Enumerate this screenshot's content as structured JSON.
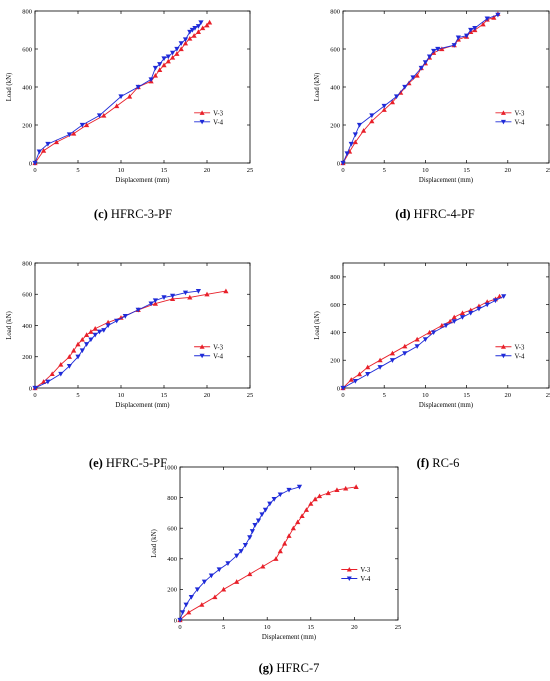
{
  "colors": {
    "v3": "#e8202a",
    "v4": "#1f2bd8",
    "axis": "#000000"
  },
  "chart_data": [
    {
      "type": "line",
      "caption": "(c) HFRC-3-PF",
      "xlabel": "Displacement (mm)",
      "ylabel": "Load (kN)",
      "xlim": [
        0,
        25
      ],
      "ylim": [
        0,
        800
      ],
      "xticks": [
        0,
        5,
        10,
        15,
        20,
        25
      ],
      "yticks": [
        0,
        200,
        400,
        600,
        800
      ],
      "legend": "right",
      "series": [
        {
          "name": "V-3",
          "marker": "triangle-up",
          "x": [
            0,
            1,
            2.5,
            4.5,
            6,
            8,
            9.5,
            11,
            12,
            13.5,
            14,
            14.5,
            15,
            15.5,
            16,
            16.5,
            17,
            17.5,
            18,
            18.5,
            19,
            19.5,
            20,
            20.3
          ],
          "y": [
            0,
            65,
            110,
            155,
            200,
            250,
            300,
            350,
            400,
            430,
            460,
            490,
            515,
            535,
            555,
            575,
            600,
            630,
            655,
            670,
            690,
            710,
            725,
            740
          ]
        },
        {
          "name": "V-4",
          "marker": "triangle-down",
          "x": [
            0,
            0.5,
            1.5,
            4,
            5.5,
            7.5,
            10,
            12,
            13.5,
            14,
            14.5,
            15,
            15.5,
            16,
            16.5,
            17,
            17.5,
            18,
            18.3,
            18.6,
            19,
            19.3
          ],
          "y": [
            0,
            60,
            100,
            150,
            200,
            250,
            350,
            400,
            440,
            500,
            520,
            550,
            560,
            580,
            600,
            630,
            650,
            690,
            700,
            710,
            720,
            740
          ]
        }
      ]
    },
    {
      "type": "line",
      "caption": "(d) HFRC-4-PF",
      "xlabel": "Displacement (mm)",
      "ylabel": "Load (kN)",
      "xlim": [
        0,
        25
      ],
      "ylim": [
        0,
        800
      ],
      "xticks": [
        0,
        5,
        10,
        15,
        20,
        25
      ],
      "yticks": [
        0,
        200,
        400,
        600,
        800
      ],
      "legend": "right",
      "series": [
        {
          "name": "V-3",
          "marker": "triangle-up",
          "x": [
            0,
            0.8,
            1.5,
            2.5,
            3.5,
            5,
            6,
            7,
            8,
            9,
            9.5,
            10,
            10.5,
            11,
            12,
            13.5,
            14,
            15,
            15.5,
            16,
            17,
            17.5,
            18.3,
            18.8
          ],
          "y": [
            0,
            60,
            110,
            170,
            220,
            280,
            320,
            370,
            420,
            460,
            500,
            525,
            555,
            580,
            600,
            620,
            650,
            665,
            690,
            700,
            730,
            755,
            765,
            785
          ]
        },
        {
          "name": "V-4",
          "marker": "triangle-down",
          "x": [
            0,
            0.5,
            1,
            1.5,
            2,
            3.5,
            5,
            6.5,
            7.5,
            8.5,
            9.5,
            10,
            10.5,
            11,
            11.5,
            13.5,
            14,
            15,
            15.5,
            16,
            17.5,
            18.8
          ],
          "y": [
            0,
            50,
            100,
            150,
            200,
            250,
            300,
            350,
            400,
            450,
            500,
            530,
            560,
            590,
            600,
            620,
            660,
            670,
            700,
            710,
            760,
            780
          ]
        }
      ]
    },
    {
      "type": "line",
      "caption": "(e) HFRC-5-PF",
      "xlabel": "Displacement (mm)",
      "ylabel": "Load (kN)",
      "xlim": [
        0,
        25
      ],
      "ylim": [
        0,
        800
      ],
      "xticks": [
        0,
        5,
        10,
        15,
        20,
        25
      ],
      "yticks": [
        0,
        200,
        400,
        600,
        800
      ],
      "legend": "right",
      "series": [
        {
          "name": "V-3",
          "marker": "triangle-up",
          "x": [
            0,
            1,
            2,
            3,
            4,
            4.5,
            5,
            5.5,
            6,
            6.5,
            7,
            8.5,
            10,
            12,
            14,
            16,
            18,
            20,
            22.2
          ],
          "y": [
            0,
            40,
            90,
            150,
            200,
            240,
            280,
            310,
            340,
            360,
            380,
            420,
            450,
            500,
            540,
            570,
            580,
            600,
            620
          ]
        },
        {
          "name": "V-4",
          "marker": "triangle-down",
          "x": [
            0,
            1.5,
            3,
            4,
            5,
            5.5,
            6,
            6.5,
            7,
            7.5,
            8,
            8.5,
            9.5,
            10.5,
            12,
            13.5,
            14,
            15,
            16,
            17.5,
            19
          ],
          "y": [
            0,
            40,
            90,
            140,
            200,
            240,
            280,
            310,
            340,
            360,
            370,
            400,
            430,
            460,
            500,
            540,
            560,
            580,
            590,
            610,
            620
          ]
        }
      ]
    },
    {
      "type": "line",
      "caption": "(f) RC-6",
      "xlabel": "Displacement (mm)",
      "ylabel": "Load (kN)",
      "xlim": [
        0,
        25
      ],
      "ylim": [
        0,
        900
      ],
      "xticks": [
        0,
        5,
        10,
        15,
        20,
        25
      ],
      "yticks": [
        0,
        200,
        400,
        600,
        800
      ],
      "legend": "right",
      "series": [
        {
          "name": "V-3",
          "marker": "triangle-up",
          "x": [
            0,
            1,
            2,
            3,
            4.5,
            6,
            7.5,
            9,
            10.5,
            12,
            13,
            13.5,
            14.5,
            15.5,
            16.5,
            17.5,
            18.5,
            19
          ],
          "y": [
            0,
            60,
            100,
            150,
            200,
            250,
            300,
            350,
            400,
            450,
            480,
            510,
            540,
            560,
            590,
            620,
            640,
            660
          ]
        },
        {
          "name": "V-4",
          "marker": "triangle-down",
          "x": [
            0,
            1.5,
            3,
            4.5,
            6,
            7.5,
            9,
            10,
            11,
            12.5,
            13.5,
            14.5,
            15.5,
            16.5,
            17.5,
            18.5,
            19.5
          ],
          "y": [
            0,
            50,
            100,
            150,
            200,
            250,
            300,
            350,
            400,
            450,
            480,
            510,
            540,
            570,
            600,
            630,
            660
          ]
        }
      ]
    },
    {
      "type": "line",
      "caption": "(g) HFRC-7",
      "xlabel": "Displacement (mm)",
      "ylabel": "Load (kN)",
      "xlim": [
        0,
        25
      ],
      "ylim": [
        0,
        1000
      ],
      "xticks": [
        0,
        5,
        10,
        15,
        20,
        25
      ],
      "yticks": [
        0,
        200,
        400,
        600,
        800,
        1000
      ],
      "legend": "right",
      "series": [
        {
          "name": "V-3",
          "marker": "triangle-up",
          "x": [
            0,
            1,
            2.5,
            4,
            5,
            6.5,
            8,
            9.5,
            11,
            11.5,
            12,
            12.5,
            13,
            13.5,
            14,
            14.5,
            15,
            15.5,
            16,
            17,
            18,
            19,
            20.2
          ],
          "y": [
            0,
            50,
            100,
            150,
            200,
            250,
            300,
            350,
            400,
            450,
            500,
            550,
            600,
            640,
            680,
            720,
            760,
            790,
            810,
            830,
            850,
            860,
            870
          ]
        },
        {
          "name": "V-4",
          "marker": "triangle-down",
          "x": [
            0,
            0.3,
            0.7,
            1.3,
            2,
            2.8,
            3.6,
            4.5,
            5.5,
            6.5,
            7,
            7.5,
            8,
            8.3,
            8.6,
            9,
            9.4,
            9.8,
            10.3,
            10.8,
            11.5,
            12.5,
            13.7
          ],
          "y": [
            0,
            50,
            100,
            150,
            200,
            250,
            290,
            330,
            370,
            420,
            450,
            490,
            540,
            580,
            620,
            650,
            690,
            720,
            760,
            790,
            820,
            850,
            870
          ]
        }
      ]
    }
  ]
}
